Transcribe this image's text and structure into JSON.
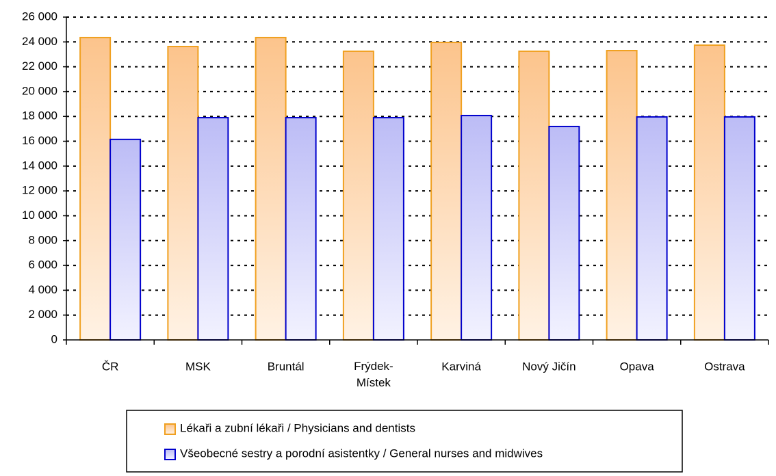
{
  "chart_data": {
    "type": "bar",
    "categories": [
      "ČR",
      "MSK",
      "Bruntál",
      "Frýdek-Místek",
      "Karviná",
      "Nový Jičín",
      "Opava",
      "Ostrava"
    ],
    "series": [
      {
        "name": "Lékaři a zubní lékaři / Physicians and dentists",
        "color": "#f0a020",
        "values": [
          24350,
          23630,
          24350,
          23250,
          23960,
          23250,
          23300,
          23740
        ]
      },
      {
        "name": "Všeobecné sestry a porodní asistentky / General nurses and midwives",
        "color": "#0000cc",
        "values": [
          16150,
          17900,
          17900,
          17900,
          18070,
          17190,
          17960,
          17960
        ]
      }
    ],
    "ylim": [
      0,
      26000
    ],
    "yticks": [
      0,
      {
        "value": 2000,
        "label": "2 000"
      },
      {
        "value": 4000,
        "label": "4 000"
      },
      {
        "value": 6000,
        "label": "6 000"
      },
      {
        "value": 8000,
        "label": "8 000"
      },
      {
        "value": 10000,
        "label": "10 000"
      },
      {
        "value": 12000,
        "label": "12 000"
      },
      {
        "value": 14000,
        "label": "14 000"
      },
      {
        "value": 16000,
        "label": "16 000"
      },
      {
        "value": 18000,
        "label": "18 000"
      },
      {
        "value": 20000,
        "label": "20 000"
      },
      {
        "value": 22000,
        "label": "22 000"
      },
      {
        "value": 24000,
        "label": "24 000"
      },
      {
        "value": 26000,
        "label": "26 000"
      }
    ],
    "grid": true,
    "legend": "bottom"
  }
}
